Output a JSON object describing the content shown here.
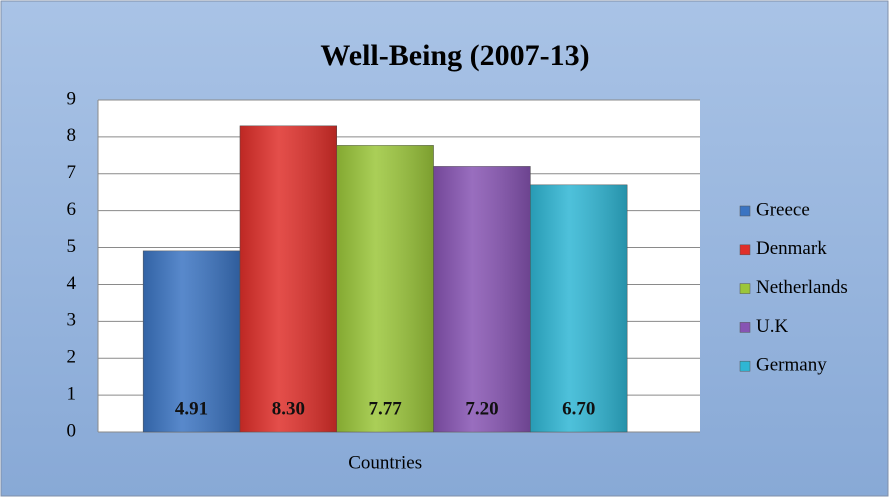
{
  "chart_data": {
    "type": "bar",
    "title": "Well-Being (2007-13)",
    "categories": [
      "Countries"
    ],
    "series": [
      {
        "name": "Greece",
        "color": "#3b74c2",
        "values": [
          4.91
        ],
        "value_labels": [
          "4.91"
        ]
      },
      {
        "name": "Denmark",
        "color": "#df2f2a",
        "values": [
          8.3
        ],
        "value_labels": [
          "8.30"
        ]
      },
      {
        "name": "Netherlands",
        "color": "#9bc63a",
        "values": [
          7.77
        ],
        "value_labels": [
          "7.77"
        ]
      },
      {
        "name": "U.K",
        "color": "#8754b3",
        "values": [
          7.2
        ],
        "value_labels": [
          "7.20"
        ]
      },
      {
        "name": "Germany",
        "color": "#2fb6d4",
        "values": [
          6.7
        ],
        "value_labels": [
          "6.70"
        ]
      }
    ],
    "ylim": [
      0,
      9
    ],
    "yticks": [
      0,
      1,
      2,
      3,
      4,
      5,
      6,
      7,
      8,
      9
    ],
    "grid": true,
    "legend": "right"
  }
}
